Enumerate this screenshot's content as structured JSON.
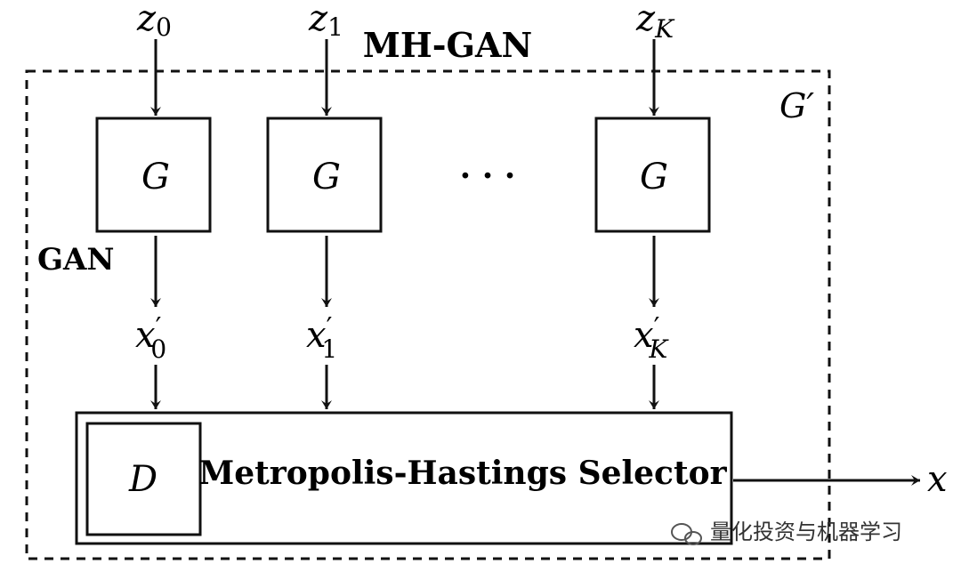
{
  "container": {
    "title": "MH-GAN",
    "corner_label": "G′"
  },
  "gan_label": "GAN",
  "inputs": [
    {
      "base": "z",
      "sub": "0"
    },
    {
      "base": "z",
      "sub": "1"
    },
    {
      "base": "z",
      "sub": "K"
    }
  ],
  "generators": [
    {
      "label": "G"
    },
    {
      "label": "G"
    },
    {
      "label": "G"
    }
  ],
  "ellipsis": "·  ·  ·",
  "samples": [
    {
      "base": "x",
      "prime": "′",
      "sub": "0"
    },
    {
      "base": "x",
      "prime": "′",
      "sub": "1"
    },
    {
      "base": "x",
      "prime": "′",
      "sub": "K"
    }
  ],
  "selector": {
    "label": "Metropolis-Hastings Selector",
    "discriminator_label": "D"
  },
  "output_label": "x",
  "watermark": "量化投资与机器学习",
  "colors": {
    "ink": "#111111",
    "watermark": "#333333"
  }
}
